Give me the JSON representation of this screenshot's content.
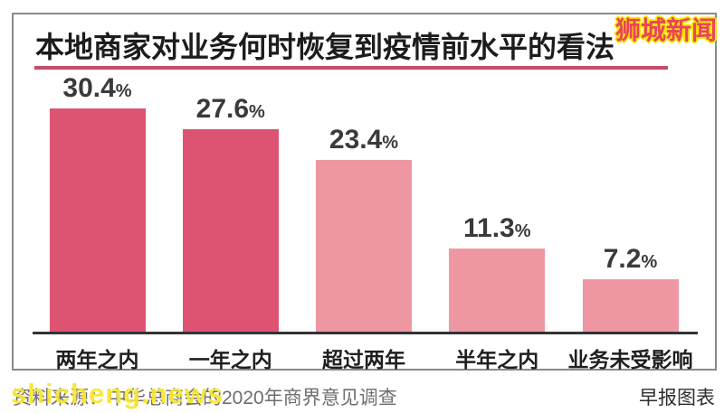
{
  "title": "本地商家对业务何时恢复到疫情前水平的看法",
  "watermark_top": "狮城新闻",
  "watermark_bottom": "shicheng.news",
  "footer": {
    "source": "资料来源：中华总商会的2020年商界意见调查",
    "credit": "早报图表"
  },
  "colors": {
    "bar_dark": "#DD5472",
    "bar_light": "#EE97A3",
    "title_underline": "#C34E6C",
    "axis": "#333333",
    "watermark_red": "#E8455A",
    "watermark_yellow": "#FFE600"
  },
  "chart_data": {
    "type": "bar",
    "title": "本地商家对业务何时恢复到疫情前水平的看法",
    "categories": [
      "两年之内",
      "一年之内",
      "超过两年",
      "半年之内",
      "业务未受影响"
    ],
    "values": [
      30.4,
      27.6,
      23.4,
      11.3,
      7.2
    ],
    "value_labels": [
      "30.4%",
      "27.6%",
      "23.4%",
      "11.3%",
      "7.2%"
    ],
    "bar_colors": [
      "#DD5472",
      "#DD5472",
      "#EE97A3",
      "#EE97A3",
      "#EE97A3"
    ],
    "unit": "%",
    "xlabel": "",
    "ylabel": "",
    "ylim": [
      0,
      33
    ],
    "grid": false,
    "legend": false
  }
}
